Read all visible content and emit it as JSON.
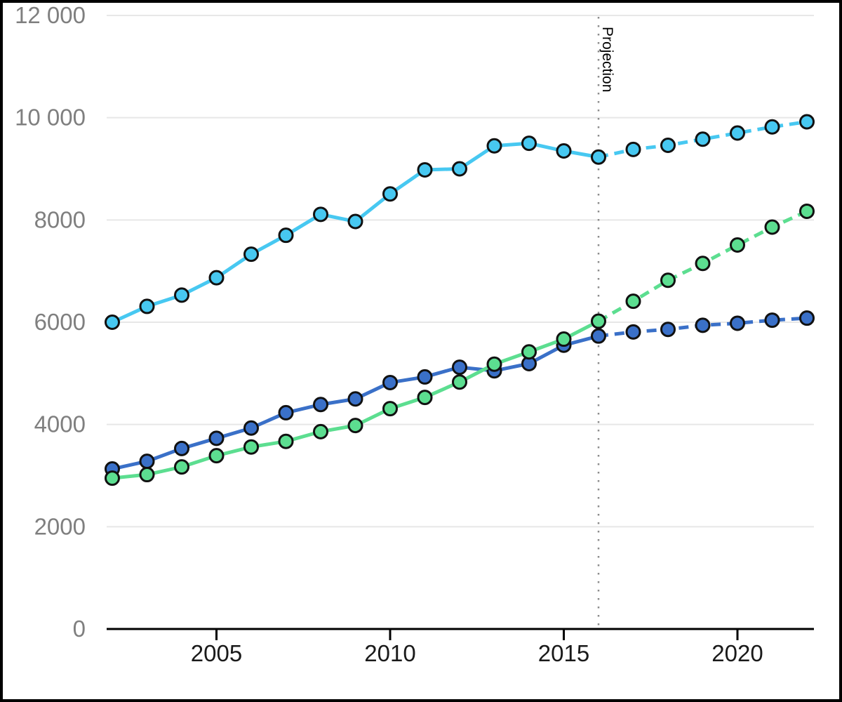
{
  "chart": {
    "projection_label": "Projection"
  },
  "chart_data": {
    "type": "line",
    "title": "",
    "xlabel": "",
    "ylabel": "",
    "x": [
      2002,
      2003,
      2004,
      2005,
      2006,
      2007,
      2008,
      2009,
      2010,
      2011,
      2012,
      2013,
      2014,
      2015,
      2016,
      2017,
      2018,
      2019,
      2020,
      2021,
      2022
    ],
    "series": [
      {
        "name": "cyan",
        "color": "#47C8F1",
        "values": [
          6000,
          6310,
          6530,
          6870,
          7330,
          7700,
          8110,
          7970,
          8510,
          8980,
          9000,
          9450,
          9500,
          9350,
          9230,
          9380,
          9460,
          9580,
          9700,
          9820,
          9920
        ]
      },
      {
        "name": "blue",
        "color": "#3A70C8",
        "values": [
          3130,
          3280,
          3530,
          3730,
          3930,
          4230,
          4390,
          4500,
          4820,
          4930,
          5120,
          5050,
          5190,
          5550,
          5730,
          5810,
          5860,
          5940,
          5980,
          6040,
          6080
        ]
      },
      {
        "name": "green",
        "color": "#5CDE90",
        "values": [
          2950,
          3020,
          3170,
          3390,
          3560,
          3670,
          3860,
          3980,
          4310,
          4530,
          4830,
          5180,
          5420,
          5670,
          6020,
          6410,
          6820,
          7150,
          7510,
          7860,
          8170
        ]
      }
    ],
    "projection": {
      "label": "Projection",
      "start_year": 2016,
      "divider_style": "dotted"
    },
    "solid_until_year": 2016,
    "xticks": [
      2005,
      2010,
      2015,
      2020
    ],
    "xtick_labels": [
      "2005",
      "2010",
      "2015",
      "2020"
    ],
    "yticks": [
      0,
      2000,
      4000,
      6000,
      8000,
      10000,
      12000
    ],
    "ytick_labels": [
      "0",
      "2000",
      "4000",
      "6000",
      "8000",
      "10 000",
      "12 000"
    ],
    "ylim": [
      0,
      12000
    ],
    "xlim": [
      2001.8,
      2022.2
    ],
    "grid": true,
    "legend": "none"
  },
  "style": {
    "background": "#FFFFFF",
    "frame_border": "#000000",
    "grid_color": "#E7E7E7",
    "axis_color": "#000000",
    "y_label_color": "#7F7F7F",
    "x_label_color": "#1A1A1A",
    "projection_line_color": "#8C8C8C",
    "projection_text_color": "#000000",
    "marker_stroke": "#111111"
  }
}
